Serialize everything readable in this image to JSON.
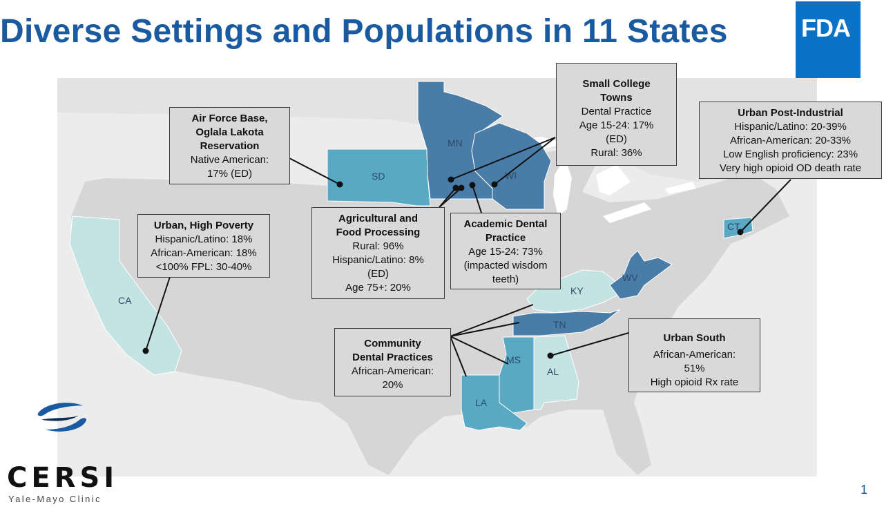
{
  "title": "Diverse Settings and Populations in 11 States",
  "logos": {
    "fda": "FDA",
    "cersi_name": "CERSI",
    "cersi_sub": "Yale-Mayo Clinic"
  },
  "page_number": "1",
  "colors": {
    "title": "#1a5aa0",
    "state_dark": "#4a7ca8",
    "state_mid": "#5aa9c4",
    "state_light": "#c3e4e2",
    "callout_bg": "#d9d9d9",
    "map_bg": "#d6d6d6"
  },
  "states": [
    {
      "abbr": "MN",
      "shade": "dark"
    },
    {
      "abbr": "WI",
      "shade": "dark"
    },
    {
      "abbr": "SD",
      "shade": "mid"
    },
    {
      "abbr": "CA",
      "shade": "light"
    },
    {
      "abbr": "CT",
      "shade": "mid"
    },
    {
      "abbr": "KY",
      "shade": "light"
    },
    {
      "abbr": "WV",
      "shade": "dark"
    },
    {
      "abbr": "TN",
      "shade": "dark"
    },
    {
      "abbr": "MS",
      "shade": "mid"
    },
    {
      "abbr": "AL",
      "shade": "light"
    },
    {
      "abbr": "LA",
      "shade": "mid"
    }
  ],
  "callouts": {
    "air_force": {
      "heading": [
        "Air Force Base,",
        "Oglala Lakota",
        "Reservation"
      ],
      "lines": [
        "Native American:",
        "17% (ED)"
      ]
    },
    "urban_high_poverty": {
      "heading": [
        "Urban, High Poverty"
      ],
      "lines": [
        "Hispanic/Latino: 18%",
        "African-American: 18%",
        "<100% FPL: 30-40%"
      ]
    },
    "agricultural": {
      "heading": [
        "Agricultural and",
        "Food Processing"
      ],
      "lines": [
        "Rural: 96%",
        "Hispanic/Latino: 8%",
        "(ED)",
        "Age 75+: 20%"
      ]
    },
    "academic_dental": {
      "heading": [
        "Academic Dental",
        "Practice"
      ],
      "lines": [
        "Age 15-24: 73%",
        "(impacted wisdom",
        "teeth)"
      ]
    },
    "small_college": {
      "heading": [
        "Small College",
        "Towns"
      ],
      "lines": [
        "Dental  Practice",
        "Age 15-24: 17%",
        "(ED)",
        "Rural: 36%"
      ]
    },
    "urban_post_industrial": {
      "heading": [
        "Urban Post-Industrial"
      ],
      "lines": [
        "Hispanic/Latino: 20-39%",
        "African-American: 20-33%",
        "Low English proficiency: 23%",
        "Very high opioid OD death rate"
      ]
    },
    "community_dental": {
      "heading": [
        "Community",
        "Dental Practices"
      ],
      "lines": [
        "African-American:",
        "20%"
      ]
    },
    "urban_south": {
      "heading": [
        "Urban South"
      ],
      "lines": [
        "African-American:",
        "51%",
        "High opioid Rx rate"
      ]
    }
  }
}
